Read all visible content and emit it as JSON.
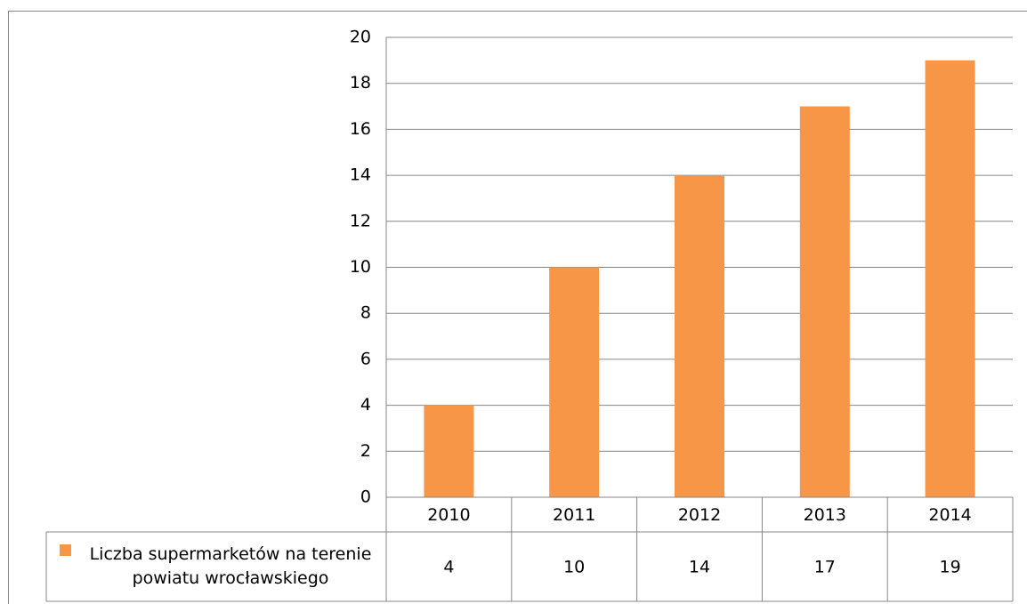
{
  "chart_data": {
    "type": "bar",
    "categories": [
      "2010",
      "2011",
      "2012",
      "2013",
      "2014"
    ],
    "series": [
      {
        "name": "Liczba supermarketów na terenie powiatu wrocławskiego",
        "color": "#f79646",
        "values": [
          4,
          10,
          14,
          17,
          19
        ]
      }
    ],
    "ylim": [
      0,
      20
    ],
    "yticks": [
      0,
      2,
      4,
      6,
      8,
      10,
      12,
      14,
      16,
      18,
      20
    ],
    "grid": true,
    "data_table": true
  }
}
